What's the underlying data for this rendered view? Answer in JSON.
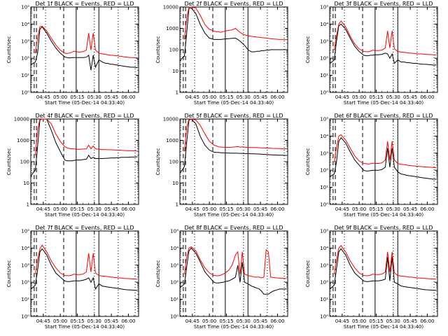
{
  "common": {
    "xlabel": "Start Time (05-Dec-14 04:33:40)",
    "ylabel": "Counts/sec",
    "x_ticks": [
      "04:45",
      "05:00",
      "05:15",
      "05:30",
      "05:45",
      "06:00"
    ],
    "colors": {
      "events": "#000000",
      "lld": "#ff0000"
    }
  },
  "chart_data": [
    {
      "type": "line",
      "title": "Det 1f BLACK = Events, RED = LLD",
      "yscale": "log",
      "ylim": [
        1,
        100000
      ],
      "y_ticks": [
        "10⁰",
        "10¹",
        "10²",
        "10³",
        "10⁴",
        "10⁵"
      ],
      "x": [
        0,
        2,
        4,
        6,
        8,
        10,
        14,
        18,
        22,
        26,
        30,
        32,
        34,
        36,
        38,
        40,
        43,
        46,
        49,
        51,
        53,
        55,
        57,
        60,
        63,
        66,
        68,
        70,
        72,
        74,
        76,
        78,
        80,
        82,
        85,
        88,
        91,
        94
      ],
      "series": [
        {
          "values": [
            40,
            50,
            60,
            200,
            5000,
            7000,
            3000,
            1000,
            400,
            200,
            120,
            110,
            105,
            110,
            110,
            110,
            110,
            110,
            115,
            150,
            20,
            150,
            30,
            80,
            60,
            50,
            50,
            45,
            45,
            42,
            40,
            38,
            36,
            34,
            32,
            30,
            30,
            28
          ]
        },
        {
          "values": [
            null,
            null,
            200,
            1500,
            7000,
            7500,
            4000,
            1500,
            600,
            300,
            200,
            190,
            200,
            220,
            260,
            240,
            230,
            240,
            300,
            3000,
            300,
            3000,
            300,
            200,
            180,
            170,
            160,
            150,
            150,
            140,
            140,
            130,
            130,
            120,
            115,
            110,
            108,
            105
          ]
        }
      ]
    },
    {
      "type": "line",
      "title": "Det 2f BLACK = Events, RED = LLD",
      "yscale": "log",
      "ylim": [
        1,
        10000
      ],
      "y_ticks": [
        "1",
        "10",
        "100",
        "1000",
        "10000"
      ],
      "x": [
        0,
        2,
        4,
        6,
        8,
        10,
        14,
        18,
        22,
        26,
        30,
        32,
        34,
        36,
        38,
        40,
        43,
        46,
        49,
        51,
        53,
        55,
        57,
        60,
        63,
        66,
        68,
        70,
        72,
        74,
        76,
        78,
        80,
        82,
        85,
        88,
        91,
        94
      ],
      "series": [
        {
          "values": [
            30,
            40,
            50,
            600,
            9000,
            9000,
            5000,
            1500,
            600,
            350,
            300,
            300,
            300,
            300,
            310,
            320,
            330,
            340,
            350,
            300,
            250,
            200,
            160,
            100,
            80,
            80,
            85,
            85,
            90,
            90,
            95,
            95,
            100,
            100,
            100,
            100,
            100,
            100
          ]
        },
        {
          "values": [
            null,
            null,
            300,
            3000,
            10000,
            10000,
            9000,
            4000,
            1500,
            900,
            750,
            700,
            700,
            650,
            700,
            750,
            800,
            850,
            1000,
            800,
            650,
            550,
            500,
            450,
            420,
            400,
            390,
            380,
            370,
            360,
            350,
            340,
            330,
            320,
            310,
            300,
            300,
            290
          ]
        }
      ]
    },
    {
      "type": "line",
      "title": "Det 3f BLACK = Events, RED = LLD",
      "yscale": "log",
      "ylim": [
        1,
        100000
      ],
      "y_ticks": [
        "10⁰",
        "10¹",
        "10²",
        "10³",
        "10⁴",
        "10⁵"
      ],
      "x": [
        0,
        2,
        4,
        6,
        8,
        10,
        14,
        18,
        22,
        26,
        30,
        32,
        34,
        36,
        38,
        40,
        43,
        46,
        49,
        51,
        53,
        55,
        57,
        60,
        63,
        66,
        68,
        70,
        72,
        74,
        76,
        78,
        80,
        82,
        85,
        88,
        91,
        94
      ],
      "series": [
        {
          "values": [
            50,
            60,
            80,
            1000,
            8000,
            10000,
            5000,
            1500,
            500,
            250,
            150,
            140,
            140,
            150,
            150,
            160,
            160,
            170,
            200,
            180,
            100,
            180,
            50,
            80,
            60,
            60,
            55,
            55,
            52,
            50,
            50,
            48,
            46,
            45,
            44,
            42,
            40,
            40
          ]
        },
        {
          "values": [
            null,
            null,
            300,
            2000,
            10000,
            15000,
            7000,
            2000,
            700,
            350,
            250,
            240,
            240,
            260,
            300,
            280,
            280,
            300,
            400,
            4000,
            400,
            4000,
            350,
            250,
            230,
            220,
            210,
            200,
            200,
            190,
            190,
            180,
            180,
            175,
            170,
            165,
            160,
            155
          ]
        }
      ]
    },
    {
      "type": "line",
      "title": "Det 4f BLACK = Events, RED = LLD",
      "yscale": "log",
      "ylim": [
        1,
        10000
      ],
      "y_ticks": [
        "1",
        "10",
        "100",
        "1000",
        "10000"
      ],
      "x": [
        0,
        2,
        4,
        6,
        8,
        10,
        14,
        18,
        22,
        26,
        30,
        32,
        34,
        36,
        38,
        40,
        43,
        46,
        49,
        51,
        53,
        55,
        57,
        60,
        63,
        66,
        68,
        70,
        72,
        74,
        76,
        78,
        80,
        82,
        85,
        88,
        91,
        94
      ],
      "series": [
        {
          "values": [
            20,
            30,
            40,
            500,
            9000,
            10000,
            10000,
            3000,
            800,
            300,
            120,
            110,
            110,
            110,
            115,
            120,
            120,
            125,
            130,
            200,
            140,
            160,
            140,
            140,
            140,
            145,
            145,
            150,
            150,
            150,
            155,
            155,
            160,
            160,
            160,
            165,
            165,
            170
          ]
        },
        {
          "values": [
            null,
            null,
            200,
            3000,
            10000,
            10000,
            10000,
            6000,
            2000,
            900,
            500,
            450,
            420,
            400,
            400,
            380,
            380,
            390,
            400,
            600,
            400,
            550,
            400,
            380,
            370,
            370,
            365,
            360,
            360,
            355,
            350,
            345,
            340,
            335,
            330,
            325,
            320,
            315
          ]
        }
      ]
    },
    {
      "type": "line",
      "title": "Det 5f BLACK = Events, RED = LLD",
      "yscale": "log",
      "ylim": [
        1,
        10000
      ],
      "y_ticks": [
        "1",
        "10",
        "100",
        "1000",
        "10000"
      ],
      "x": [
        0,
        2,
        4,
        6,
        8,
        10,
        14,
        18,
        22,
        26,
        30,
        32,
        34,
        36,
        38,
        40,
        43,
        46,
        49,
        51,
        53,
        55,
        57,
        60,
        63,
        66,
        68,
        70,
        72,
        74,
        76,
        78,
        80,
        82,
        85,
        88,
        91,
        94
      ],
      "series": [
        {
          "values": [
            30,
            40,
            60,
            800,
            9000,
            10000,
            6000,
            1500,
            600,
            350,
            280,
            270,
            270,
            260,
            260,
            255,
            255,
            250,
            250,
            250,
            245,
            245,
            240,
            240,
            235,
            235,
            230,
            230,
            225,
            220,
            220,
            215,
            210,
            210,
            205,
            200,
            200,
            195
          ]
        },
        {
          "values": [
            null,
            null,
            300,
            4000,
            10000,
            10000,
            9000,
            5000,
            2000,
            900,
            600,
            550,
            500,
            480,
            480,
            470,
            470,
            480,
            500,
            520,
            480,
            500,
            480,
            470,
            460,
            460,
            455,
            450,
            445,
            440,
            435,
            430,
            425,
            420,
            415,
            410,
            405,
            400
          ]
        }
      ]
    },
    {
      "type": "line",
      "title": "Det 6f BLACK = Events, RED = LLD",
      "yscale": "log",
      "ylim": [
        1,
        100000
      ],
      "y_ticks": [
        "10⁰",
        "10¹",
        "10²",
        "10³",
        "10⁴",
        "10⁵"
      ],
      "x": [
        0,
        2,
        4,
        6,
        8,
        10,
        14,
        18,
        22,
        26,
        30,
        32,
        34,
        36,
        38,
        40,
        43,
        46,
        49,
        51,
        53,
        55,
        57,
        60,
        63,
        66,
        68,
        70,
        72,
        74,
        76,
        78,
        80,
        82,
        85,
        88,
        91,
        94
      ],
      "series": [
        {
          "values": [
            40,
            50,
            60,
            300,
            5000,
            8000,
            4000,
            1200,
            400,
            200,
            100,
            90,
            90,
            95,
            100,
            100,
            100,
            110,
            150,
            2000,
            150,
            2000,
            150,
            80,
            60,
            55,
            50,
            48,
            46,
            44,
            42,
            40,
            38,
            36,
            34,
            32,
            30,
            30
          ]
        },
        {
          "values": [
            null,
            null,
            300,
            2000,
            10000,
            12000,
            6000,
            2000,
            700,
            350,
            250,
            240,
            230,
            240,
            260,
            250,
            250,
            270,
            400,
            5000,
            400,
            5000,
            400,
            250,
            220,
            210,
            200,
            190,
            185,
            180,
            175,
            170,
            165,
            160,
            155,
            150,
            145,
            140
          ]
        }
      ]
    },
    {
      "type": "line",
      "title": "Det 7f BLACK = Events, RED = LLD",
      "yscale": "log",
      "ylim": [
        1,
        100000
      ],
      "y_ticks": [
        "10⁰",
        "10¹",
        "10²",
        "10³",
        "10⁴",
        "10⁵"
      ],
      "x": [
        0,
        2,
        4,
        6,
        8,
        10,
        14,
        18,
        22,
        26,
        30,
        32,
        34,
        36,
        38,
        40,
        43,
        46,
        49,
        51,
        53,
        55,
        57,
        60,
        63,
        66,
        68,
        70,
        72,
        74,
        76,
        78,
        80,
        82,
        85,
        88,
        91,
        94
      ],
      "series": [
        {
          "values": [
            40,
            50,
            70,
            500,
            6000,
            9000,
            4000,
            1000,
            350,
            200,
            120,
            110,
            110,
            115,
            120,
            120,
            120,
            130,
            150,
            180,
            100,
            180,
            40,
            80,
            60,
            55,
            52,
            50,
            48,
            46,
            44,
            42,
            40,
            38,
            36,
            35,
            34,
            33
          ]
        },
        {
          "values": [
            null,
            null,
            300,
            2000,
            9000,
            15000,
            6000,
            1800,
            700,
            350,
            250,
            240,
            240,
            260,
            300,
            280,
            280,
            300,
            400,
            5000,
            400,
            5000,
            350,
            250,
            230,
            220,
            210,
            200,
            200,
            190,
            185,
            180,
            175,
            170,
            165,
            160,
            155,
            150
          ]
        }
      ]
    },
    {
      "type": "line",
      "title": "Det 8f BLACK = Events, RED = LLD",
      "yscale": "log",
      "ylim": [
        1,
        100000
      ],
      "y_ticks": [
        "10⁰",
        "10¹",
        "10²",
        "10³",
        "10⁴",
        "10⁵"
      ],
      "x": [
        0,
        2,
        4,
        6,
        8,
        10,
        14,
        18,
        22,
        26,
        30,
        32,
        34,
        36,
        38,
        40,
        43,
        46,
        49,
        51,
        53,
        55,
        57,
        60,
        63,
        66,
        68,
        70,
        72,
        74,
        76,
        78,
        80,
        82,
        85,
        88,
        91,
        94
      ],
      "series": [
        {
          "values": [
            50,
            60,
            80,
            800,
            7000,
            10000,
            5000,
            1500,
            400,
            200,
            100,
            90,
            90,
            95,
            100,
            110,
            120,
            150,
            200,
            1000,
            100,
            1500,
            100,
            80,
            60,
            50,
            45,
            40,
            30,
            20,
            20,
            20,
            25,
            30,
            35,
            40,
            40,
            40
          ]
        },
        {
          "values": [
            null,
            null,
            300,
            3000,
            10000,
            12000,
            7000,
            2000,
            700,
            350,
            250,
            240,
            240,
            260,
            300,
            350,
            500,
            1000,
            4000,
            6000,
            300,
            6000,
            300,
            250,
            220,
            200,
            200,
            200,
            180,
            200,
            8000,
            6000,
            200,
            190,
            180,
            175,
            170,
            165
          ]
        }
      ]
    },
    {
      "type": "line",
      "title": "Det 9f BLACK = Events, RED = LLD",
      "yscale": "log",
      "ylim": [
        1,
        100000
      ],
      "y_ticks": [
        "10⁰",
        "10¹",
        "10²",
        "10³",
        "10⁴",
        "10⁵"
      ],
      "x": [
        0,
        2,
        4,
        6,
        8,
        10,
        14,
        18,
        22,
        26,
        30,
        32,
        34,
        36,
        38,
        40,
        43,
        46,
        49,
        51,
        53,
        55,
        57,
        60,
        63,
        66,
        68,
        70,
        72,
        74,
        76,
        78,
        80,
        82,
        85,
        88,
        91,
        94
      ],
      "series": [
        {
          "values": [
            40,
            50,
            70,
            600,
            6000,
            9000,
            4000,
            1000,
            350,
            200,
            120,
            110,
            110,
            115,
            120,
            120,
            120,
            130,
            150,
            3000,
            120,
            3000,
            100,
            80,
            60,
            55,
            52,
            50,
            48,
            46,
            44,
            42,
            40,
            38,
            36,
            35,
            34,
            33
          ]
        },
        {
          "values": [
            null,
            null,
            300,
            2000,
            10000,
            14000,
            6000,
            1800,
            700,
            350,
            250,
            240,
            240,
            260,
            300,
            280,
            280,
            300,
            400,
            6000,
            400,
            6000,
            350,
            250,
            230,
            220,
            210,
            200,
            200,
            190,
            185,
            180,
            175,
            170,
            165,
            160,
            155,
            150
          ]
        }
      ]
    }
  ]
}
